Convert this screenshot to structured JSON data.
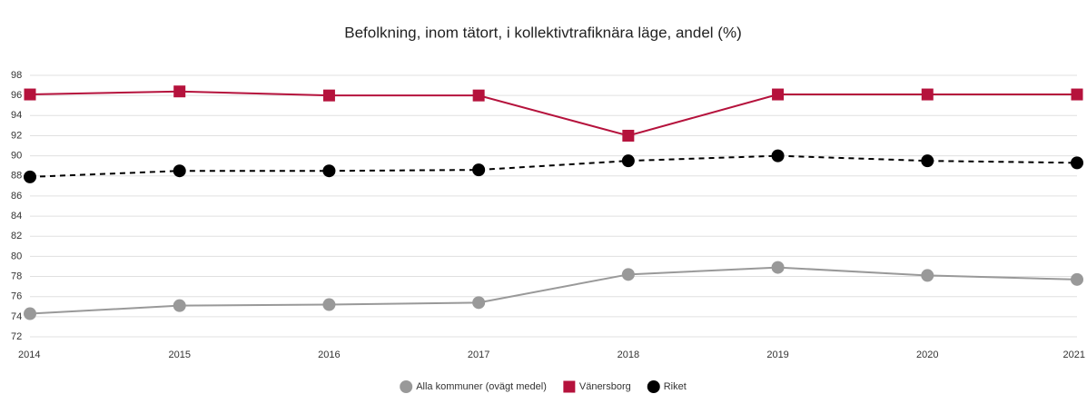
{
  "chart_data": {
    "type": "line",
    "title": "Befolkning, inom tätort, i kollektivtrafiknära läge, andel (%)",
    "categories": [
      "2014",
      "2015",
      "2016",
      "2017",
      "2018",
      "2019",
      "2020",
      "2021"
    ],
    "series": [
      {
        "name": "Alla kommuner (ovägt medel)",
        "color": "#999999",
        "marker": "circle",
        "dashed": false,
        "values": [
          74.3,
          75.1,
          75.2,
          75.4,
          78.2,
          78.9,
          78.1,
          77.7
        ]
      },
      {
        "name": "Vänersborg",
        "color": "#b5123c",
        "marker": "square",
        "dashed": false,
        "values": [
          96.1,
          96.4,
          96.0,
          96.0,
          92.0,
          96.1,
          96.1,
          96.1
        ]
      },
      {
        "name": "Riket",
        "color": "#000000",
        "marker": "circle",
        "dashed": true,
        "values": [
          87.9,
          88.5,
          88.5,
          88.6,
          89.5,
          90.0,
          89.5,
          89.3
        ]
      }
    ],
    "ylim": [
      72,
      98
    ],
    "yticks": [
      72,
      74,
      76,
      78,
      80,
      82,
      84,
      86,
      88,
      90,
      92,
      94,
      96,
      98
    ],
    "grid": true,
    "legend": "bottom"
  }
}
